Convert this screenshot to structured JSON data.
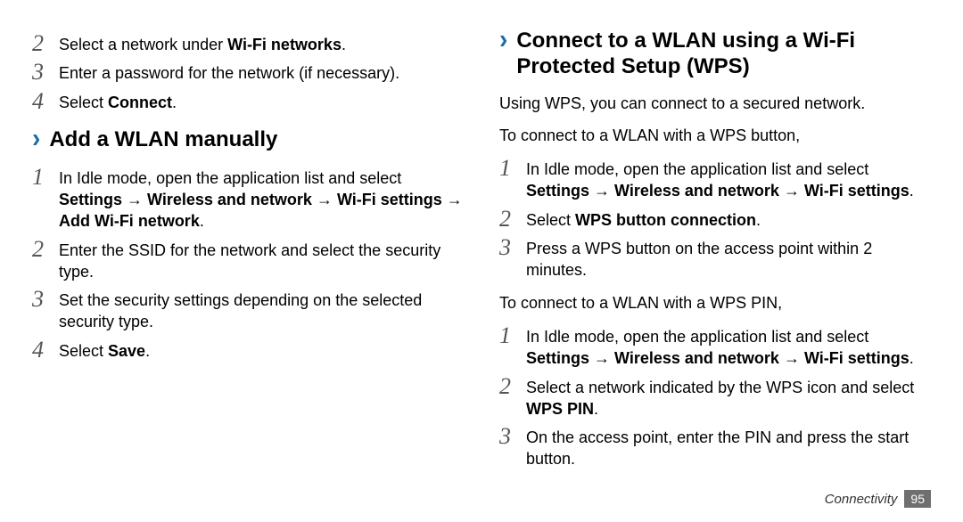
{
  "left": {
    "pre_steps": [
      {
        "n": "2",
        "html": "Select a network under <b>Wi-Fi networks</b>."
      },
      {
        "n": "3",
        "html": "Enter a password for the network (if necessary)."
      },
      {
        "n": "4",
        "html": "Select <b>Connect</b>."
      }
    ],
    "heading": "Add a WLAN manually",
    "steps": [
      {
        "n": "1",
        "html": "In Idle mode, open the application list and select <b>Settings</b> → <b>Wireless and network</b> → <b>Wi-Fi settings</b> → <b>Add Wi-Fi network</b>."
      },
      {
        "n": "2",
        "html": "Enter the SSID for the network and select the security type."
      },
      {
        "n": "3",
        "html": "Set the security settings depending on the selected security type."
      },
      {
        "n": "4",
        "html": "Select <b>Save</b>."
      }
    ]
  },
  "right": {
    "heading": "Connect to a WLAN using a Wi-Fi Protected Setup (WPS)",
    "intro1": "Using WPS, you can connect to a secured network.",
    "intro2": "To connect to a WLAN with a WPS button,",
    "steps_a": [
      {
        "n": "1",
        "html": "In Idle mode, open the application list and select <b>Settings</b> → <b>Wireless and network</b> → <b>Wi-Fi settings</b>."
      },
      {
        "n": "2",
        "html": "Select <b>WPS button connection</b>."
      },
      {
        "n": "3",
        "html": "Press a WPS button on the access point within 2 minutes."
      }
    ],
    "intro3": "To connect to a WLAN with a WPS PIN,",
    "steps_b": [
      {
        "n": "1",
        "html": "In Idle mode, open the application list and select <b>Settings</b> → <b>Wireless and network</b> → <b>Wi-Fi settings</b>."
      },
      {
        "n": "2",
        "html": "Select a network indicated by the WPS icon and select <b>WPS PIN</b>."
      },
      {
        "n": "3",
        "html": "On the access point, enter the PIN and press the start button."
      }
    ]
  },
  "footer": {
    "chapter": "Connectivity",
    "page": "95"
  },
  "colors": {
    "chevron": "#1a6ea8",
    "stepnum": "#555555",
    "pagenum_bg": "#6f6f6f",
    "pagenum_fg": "#ffffff"
  }
}
